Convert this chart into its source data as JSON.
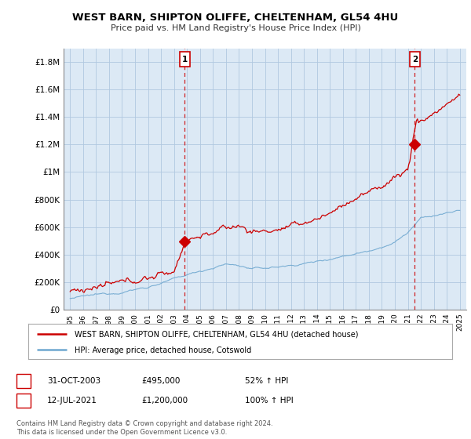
{
  "title": "WEST BARN, SHIPTON OLIFFE, CHELTENHAM, GL54 4HU",
  "subtitle": "Price paid vs. HM Land Registry's House Price Index (HPI)",
  "ylabel_ticks": [
    "£0",
    "£200K",
    "£400K",
    "£600K",
    "£800K",
    "£1M",
    "£1.2M",
    "£1.4M",
    "£1.6M",
    "£1.8M"
  ],
  "ytick_values": [
    0,
    200000,
    400000,
    600000,
    800000,
    1000000,
    1200000,
    1400000,
    1600000,
    1800000
  ],
  "ylim": [
    0,
    1900000
  ],
  "year_start": 1995,
  "year_end": 2025,
  "xtick_years": [
    1995,
    1996,
    1997,
    1998,
    1999,
    2000,
    2001,
    2002,
    2003,
    2004,
    2005,
    2006,
    2007,
    2008,
    2009,
    2010,
    2011,
    2012,
    2013,
    2014,
    2015,
    2016,
    2017,
    2018,
    2019,
    2020,
    2021,
    2022,
    2023,
    2024,
    2025
  ],
  "hpi_color": "#6fa8d0",
  "price_color": "#cc0000",
  "marker1_x": 2003.83,
  "marker1_value": 495000,
  "marker2_x": 2021.53,
  "marker2_value": 1200000,
  "legend_line1": "WEST BARN, SHIPTON OLIFFE, CHELTENHAM, GL54 4HU (detached house)",
  "legend_line2": "HPI: Average price, detached house, Cotswold",
  "marker1_date": "31-OCT-2003",
  "marker1_price": "£495,000",
  "marker1_hpi": "52% ↑ HPI",
  "marker2_date": "12-JUL-2021",
  "marker2_price": "£1,200,000",
  "marker2_hpi": "100% ↑ HPI",
  "footer": "Contains HM Land Registry data © Crown copyright and database right 2024.\nThis data is licensed under the Open Government Licence v3.0.",
  "chart_bg": "#dce9f5",
  "grid_color": "#b0c8e0",
  "fig_bg": "#ffffff",
  "vline_color": "#cc0000",
  "vline_style": "--"
}
